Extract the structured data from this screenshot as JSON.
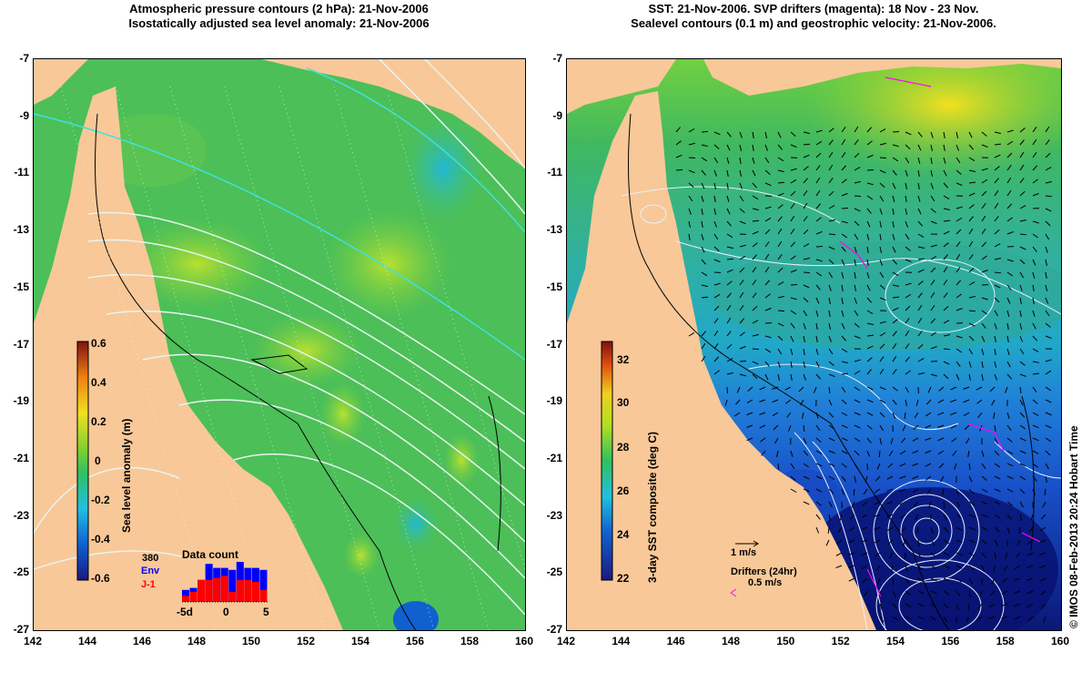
{
  "left_panel": {
    "title_line1": "Atmospheric pressure contours (2 hPa): 21-Nov-2006",
    "title_line2": "Isostatically adjusted sea level anomaly: 21-Nov-2006",
    "colorbar_label": "Sea level anomaly (m)",
    "colorbar_ticks": [
      "0.6",
      "0.4",
      "0.2",
      "0",
      "-0.2",
      "-0.4",
      "-0.6"
    ],
    "inset": {
      "title": "Data count",
      "count": "380",
      "series1": "Env",
      "series2": "J-1",
      "xticks": [
        "-5d",
        "0",
        "5"
      ],
      "series1_color": "#0000ff",
      "series2_color": "#ff0000",
      "env_bars": [
        0.3,
        0.35,
        0.55,
        0.95,
        0.85,
        0.85,
        0.8,
        1.0,
        0.85,
        0.85,
        0.8
      ],
      "j1_bars": [
        0.15,
        0.25,
        0.55,
        0.55,
        0.6,
        0.65,
        0.25,
        0.55,
        0.55,
        0.5,
        0.3
      ]
    }
  },
  "right_panel": {
    "title_line1": "SST: 21-Nov-2006. SVP drifters (magenta): 18 Nov - 23 Nov.",
    "title_line2": "Sealevel contours (0.1 m) and geostrophic velocity: 21-Nov-2006.",
    "colorbar_label": "3-day SST composite (deg C)",
    "colorbar_ticks": [
      "32",
      "30",
      "28",
      "26",
      "24",
      "22"
    ],
    "velocity_scale": "1 m/s",
    "drifters_label": "Drifters (24hr)",
    "drifter_speed": "0.5 m/s",
    "drifter_color": "#ff00ff"
  },
  "axes": {
    "yticks": [
      "-7",
      "-9",
      "-11",
      "-13",
      "-15",
      "-17",
      "-19",
      "-21",
      "-23",
      "-25",
      "-27"
    ],
    "xticks": [
      "142",
      "144",
      "146",
      "148",
      "150",
      "152",
      "154",
      "156",
      "158",
      "160"
    ]
  },
  "credit": "© IMOS 08-Feb-2013 20:24 Hobart Time",
  "colors": {
    "land": "#f8c898",
    "sla_base": "#4ec04e",
    "sst_warm": "#f0e020",
    "sst_cool": "#1030c0"
  }
}
